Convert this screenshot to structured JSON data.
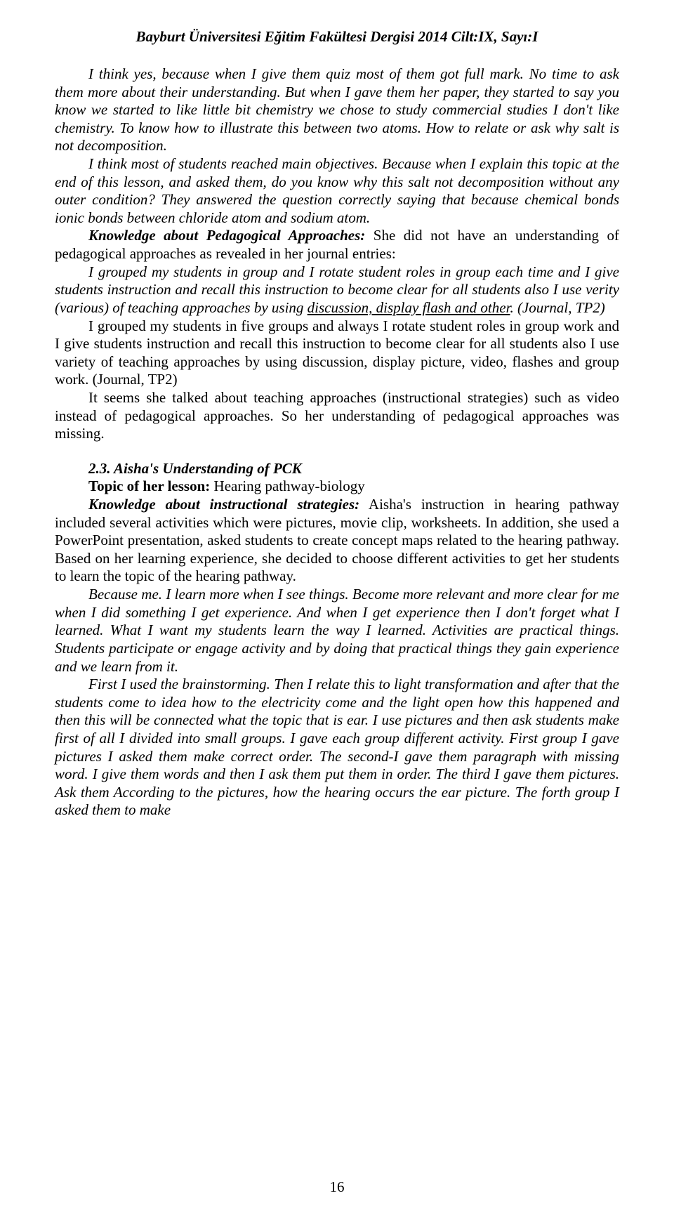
{
  "typography": {
    "font_family": "Times New Roman",
    "base_fontsize_pt": 16,
    "line_height": 1.22,
    "text_color": "#000000",
    "background_color": "#ffffff"
  },
  "header": "Bayburt Üniversitesi Eğitim Fakültesi Dergisi 2014 Cilt:IX, Sayı:I",
  "p1": "I think yes, because when I give them quiz most of them got full mark. No time to ask them more about their understanding. But when I gave them her paper, they started to say you know we started to like little bit chemistry we chose to study commercial studies I don't like chemistry. To know how to illustrate this between two atoms. How to relate or ask why salt is not decomposition.",
  "p2": "I think most of students reached main objectives. Because when I explain this topic at the end of this lesson, and asked them, do you know why this salt not decomposition without any outer condition? They answered the question correctly saying that because chemical bonds ionic bonds between chloride atom and sodium atom.",
  "p3_lead": "Knowledge about Pedagogical Approaches:",
  "p3_rest": " She did not have an understanding of pedagogical approaches as revealed in her journal entries:",
  "p4_a": "I grouped my students in group and I rotate student roles in group each time and I give students instruction and recall this instruction to become clear for all students also I use verity (various) of teaching approaches by using ",
  "p4_u": "discussion, display flash and other",
  "p4_b": ". (Journal, TP2)",
  "p5": "I grouped my students in five groups and always I rotate student roles in group work and I give students instruction and recall this instruction to become clear for all students also I use variety of teaching approaches by using discussion, display picture, video, flashes and group work. (Journal, TP2)",
  "p6": "It seems she talked about teaching approaches (instructional strategies) such as  video instead of pedagogical approaches. So her understanding of pedagogical approaches was missing.",
  "sec_heading": "2.3. Aisha's Understanding of PCK",
  "topic_label": "Topic of her lesson: ",
  "topic_value": "Hearing pathway-biology",
  "p7_lead": "Knowledge about instructional strategies:",
  "p7_rest": " Aisha's instruction in hearing pathway included several activities which were pictures, movie clip, worksheets. In addition, she used a PowerPoint presentation, asked students to create concept maps related to the hearing pathway. Based on her learning experience, she decided to choose different activities to get her students to learn the topic of the hearing pathway.",
  "p8": "Because me. I learn more when I see things. Become more relevant and more clear for me when I did something I get experience. And when I get experience then I don't forget what I learned. What I want my students learn the way I learned. Activities are practical things. Students participate or engage activity and by doing that practical things they gain experience and we learn from it.",
  "p9": "First I used the brainstorming. Then I relate this to light transformation and after that the students come to idea how to the electricity come and the light open how this happened and then this will be connected what the topic that is ear. I use pictures and then ask students make first of all I divided into small groups. I gave each group different activity. First group I gave pictures I asked them make correct order. The second-I gave them paragraph with missing word. I give them words and then I ask them put them in order. The third I gave them pictures. Ask them According to the pictures, how the hearing occurs the ear picture. The forth group I asked them to make",
  "page_number": "16"
}
